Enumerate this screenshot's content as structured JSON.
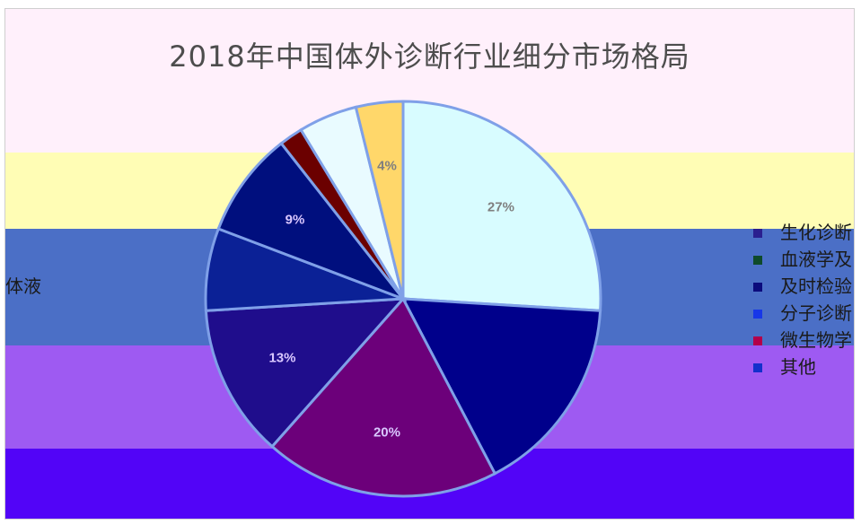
{
  "chart_data": {
    "type": "pie",
    "title": "2018年中国体外诊断行业细分市场格局",
    "slices": [
      {
        "name": "",
        "value": 27,
        "label": "27%",
        "color": "#d8fcff"
      },
      {
        "name": "",
        "value": 17,
        "label": "",
        "color": "#00008b"
      },
      {
        "name": "",
        "value": 20,
        "label": "20%",
        "color": "#6c007a"
      },
      {
        "name": "",
        "value": 13,
        "label": "13%",
        "color": "#1f0d8c"
      },
      {
        "name": "",
        "value": 7,
        "label": "",
        "color": "#0b2196"
      },
      {
        "name": "",
        "value": 9,
        "label": "9%",
        "color": "#000f7e"
      },
      {
        "name": "",
        "value": 2,
        "label": "",
        "color": "#6b0000"
      },
      {
        "name": "",
        "value": 5,
        "label": "",
        "color": "#e9fbff"
      },
      {
        "name": "",
        "value": 4,
        "label": "4%",
        "color": "#ffd76a"
      }
    ],
    "legend": {
      "position": "right",
      "items": [
        {
          "label": "生化诊断",
          "color": "#2a1f8f"
        },
        {
          "label": "血液学及",
          "color": "#0e4a2b"
        },
        {
          "label": "及时检验",
          "color": "#0b0b7d"
        },
        {
          "label": "分子诊断",
          "color": "#1737e8"
        },
        {
          "label": "微生物学",
          "color": "#b3004b"
        },
        {
          "label": "其他",
          "color": "#1330cc"
        }
      ]
    },
    "side_label": "体液"
  }
}
